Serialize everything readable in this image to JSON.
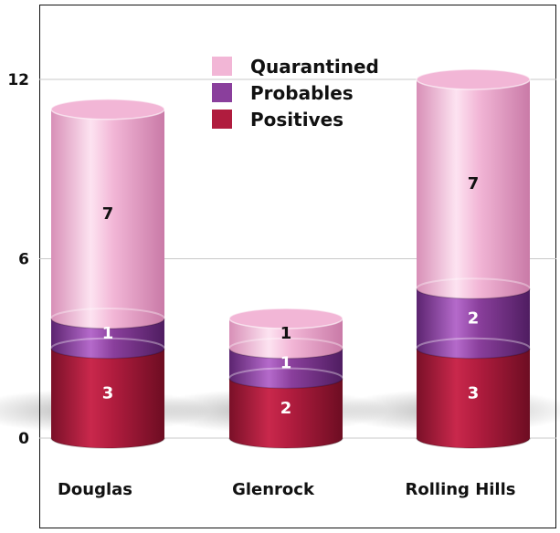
{
  "chart_data": {
    "type": "bar",
    "stacked": true,
    "style": "3d-cylinder",
    "categories": [
      "Douglas",
      "Glenrock",
      "Rolling Hills"
    ],
    "series": [
      {
        "name": "Positives",
        "values": [
          3,
          2,
          3
        ],
        "color": "#b01c3e"
      },
      {
        "name": "Probables",
        "values": [
          1,
          1,
          2
        ],
        "color": "#8a3f9c"
      },
      {
        "name": "Quarantined",
        "values": [
          7,
          1,
          7
        ],
        "color": "#f2b6d6"
      }
    ],
    "legend": {
      "placement": "top-center",
      "entries": [
        "Quarantined",
        "Probables",
        "Positives"
      ]
    },
    "y_ticks": [
      "0",
      "6",
      "12"
    ],
    "ylim": [
      0,
      12
    ],
    "grid": true
  }
}
